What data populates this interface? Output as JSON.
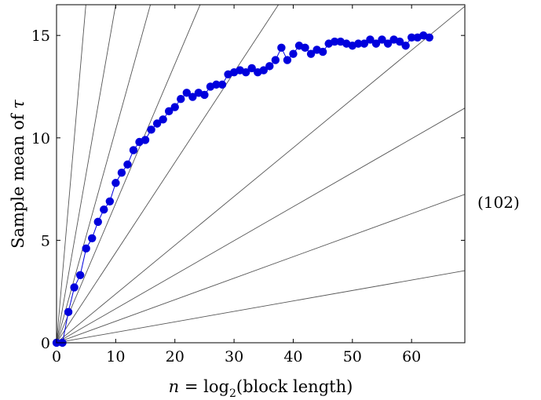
{
  "chart_data": {
    "type": "scatter",
    "xlabel_parts": {
      "var": "n",
      "eq": " = log",
      "sub": "2",
      "rest": "(block length)"
    },
    "ylabel_parts": {
      "text": "Sample mean of ",
      "var": "τ"
    },
    "xlim": [
      0,
      69
    ],
    "ylim": [
      0,
      16.5
    ],
    "xticks": [
      0,
      10,
      20,
      30,
      40,
      50,
      60
    ],
    "yticks": [
      0,
      5,
      10,
      15
    ],
    "grid": false,
    "reference_line_slopes": [
      3.33,
      1.65,
      1.04,
      0.68,
      0.44,
      0.238,
      0.166,
      0.105,
      0.051
    ],
    "series": [
      {
        "color": "#0000dd",
        "x": [
          0,
          1,
          2,
          3,
          4,
          5,
          6,
          7,
          8,
          9,
          10,
          11,
          12,
          13,
          14,
          15,
          16,
          17,
          18,
          19,
          20,
          21,
          22,
          23,
          24,
          25,
          26,
          27,
          28,
          29,
          30,
          31,
          32,
          33,
          34,
          35,
          36,
          37,
          38,
          39,
          40,
          41,
          42,
          43,
          44,
          45,
          46,
          47,
          48,
          49,
          50,
          51,
          52,
          53,
          54,
          55,
          56,
          57,
          58,
          59,
          60,
          61,
          62,
          63
        ],
        "y": [
          0,
          0,
          1.5,
          2.7,
          3.3,
          4.6,
          5.1,
          5.9,
          6.5,
          6.9,
          7.8,
          8.3,
          8.7,
          9.4,
          9.8,
          9.9,
          10.4,
          10.7,
          10.9,
          11.3,
          11.5,
          11.9,
          12.2,
          12.0,
          12.2,
          12.1,
          12.5,
          12.6,
          12.6,
          13.1,
          13.2,
          13.3,
          13.2,
          13.4,
          13.2,
          13.3,
          13.5,
          13.8,
          14.4,
          13.8,
          14.1,
          14.5,
          14.4,
          14.1,
          14.3,
          14.2,
          14.6,
          14.7,
          14.7,
          14.6,
          14.5,
          14.6,
          14.6,
          14.8,
          14.6,
          14.8,
          14.6,
          14.8,
          14.7,
          14.5,
          14.9,
          14.9,
          15.0,
          14.9
        ]
      }
    ]
  },
  "equation_number": "(102)"
}
